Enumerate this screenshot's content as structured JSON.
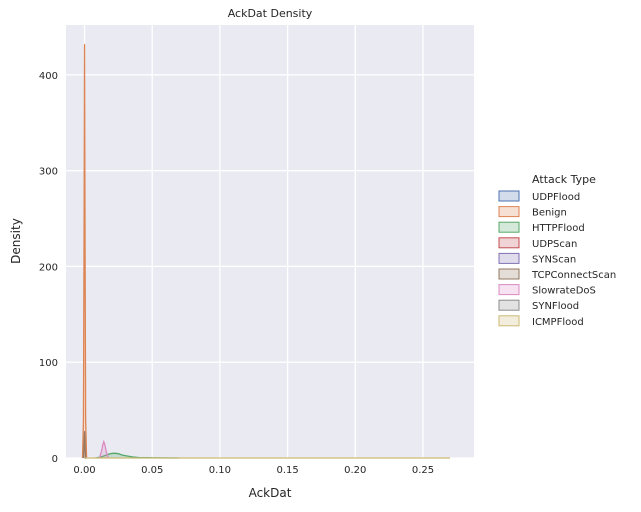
{
  "chart_data": {
    "type": "area",
    "title": "AckDat Density",
    "xlabel": "AckDat",
    "ylabel": "Density",
    "xlim": [
      -0.0137,
      0.2877
    ],
    "ylim": [
      0,
      452
    ],
    "x_ticks": [
      0.0,
      0.05,
      0.1,
      0.15,
      0.2,
      0.25
    ],
    "x_tick_labels": [
      "0.00",
      "0.05",
      "0.10",
      "0.15",
      "0.20",
      "0.25"
    ],
    "y_ticks": [
      0,
      100,
      200,
      300,
      400
    ],
    "y_tick_labels": [
      "0",
      "100",
      "200",
      "300",
      "400"
    ],
    "grid": true,
    "background": "#eaeaf2",
    "legend": {
      "title": "Attack Type",
      "placement": "right"
    },
    "series": [
      {
        "name": "UDPFlood",
        "color": "#4c72b0",
        "points": [
          [
            0.0,
            0
          ],
          [
            0.001,
            0
          ]
        ]
      },
      {
        "name": "Benign",
        "color": "#dd8452",
        "points": [
          [
            -0.0015,
            0
          ],
          [
            -0.0008,
            40
          ],
          [
            -0.0003,
            260
          ],
          [
            0.0,
            432
          ],
          [
            0.0003,
            260
          ],
          [
            0.0008,
            40
          ],
          [
            0.0015,
            0
          ]
        ]
      },
      {
        "name": "HTTPFlood",
        "color": "#55a868",
        "points": [
          [
            0.008,
            0
          ],
          [
            0.012,
            1
          ],
          [
            0.016,
            3
          ],
          [
            0.019,
            4.5
          ],
          [
            0.022,
            5
          ],
          [
            0.025,
            4.5
          ],
          [
            0.028,
            3
          ],
          [
            0.032,
            2
          ],
          [
            0.036,
            1
          ],
          [
            0.04,
            0.5
          ],
          [
            0.05,
            0.2
          ],
          [
            0.07,
            0
          ]
        ]
      },
      {
        "name": "UDPScan",
        "color": "#c44e52",
        "points": [
          [
            0.0,
            0
          ],
          [
            0.001,
            0
          ]
        ]
      },
      {
        "name": "SYNScan",
        "color": "#8172b3",
        "points": [
          [
            0.0,
            0
          ],
          [
            0.001,
            0
          ]
        ]
      },
      {
        "name": "TCPConnectScan",
        "color": "#937860",
        "points": [
          [
            -0.0008,
            0
          ],
          [
            -0.0004,
            10
          ],
          [
            0.0,
            28
          ],
          [
            0.0004,
            10
          ],
          [
            0.0008,
            0
          ]
        ]
      },
      {
        "name": "SlowrateDoS",
        "color": "#da8bc3",
        "points": [
          [
            0.011,
            0
          ],
          [
            0.0125,
            7
          ],
          [
            0.0135,
            14
          ],
          [
            0.0142,
            17
          ],
          [
            0.015,
            14
          ],
          [
            0.016,
            7
          ],
          [
            0.0175,
            0
          ]
        ]
      },
      {
        "name": "SYNFlood",
        "color": "#8c8c8c",
        "points": [
          [
            0.0,
            0
          ],
          [
            0.001,
            0
          ]
        ]
      },
      {
        "name": "ICMPFlood",
        "color": "#ccb974",
        "points": [
          [
            0.0,
            0
          ],
          [
            0.27,
            0
          ]
        ]
      }
    ]
  }
}
